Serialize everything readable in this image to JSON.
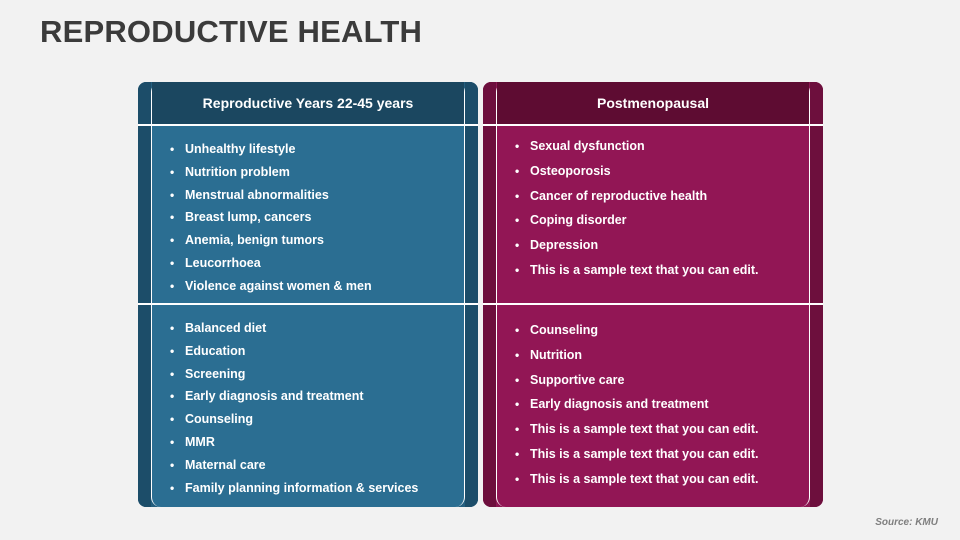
{
  "title": "REPRODUCTIVE HEALTH",
  "colors": {
    "left_panel": "#2b6e92",
    "left_header": "#1b4760",
    "right_panel": "#921655",
    "right_header": "#5e0c32"
  },
  "left": {
    "header": "Reproductive Years 22-45 years",
    "section1": [
      "Unhealthy lifestyle",
      "Nutrition problem",
      "Menstrual abnormalities",
      "Breast lump, cancers",
      "Anemia, benign tumors",
      "Leucorrhoea",
      "Violence against women & men"
    ],
    "section2": [
      "Balanced diet",
      "Education",
      "Screening",
      "Early diagnosis and treatment",
      "Counseling",
      "MMR",
      "Maternal care",
      "Family planning information & services"
    ]
  },
  "right": {
    "header": "Postmenopausal",
    "section1": [
      "Sexual dysfunction",
      "Osteoporosis",
      "Cancer of reproductive health",
      "Coping disorder",
      "Depression",
      "This is a sample text that you can edit."
    ],
    "section2": [
      "Counseling",
      "Nutrition",
      "Supportive care",
      "Early diagnosis and treatment",
      "This is a sample text that you can edit.",
      "This is a sample text that you can edit.",
      "This is a sample text that you can edit."
    ]
  },
  "source": "Source: KMU"
}
